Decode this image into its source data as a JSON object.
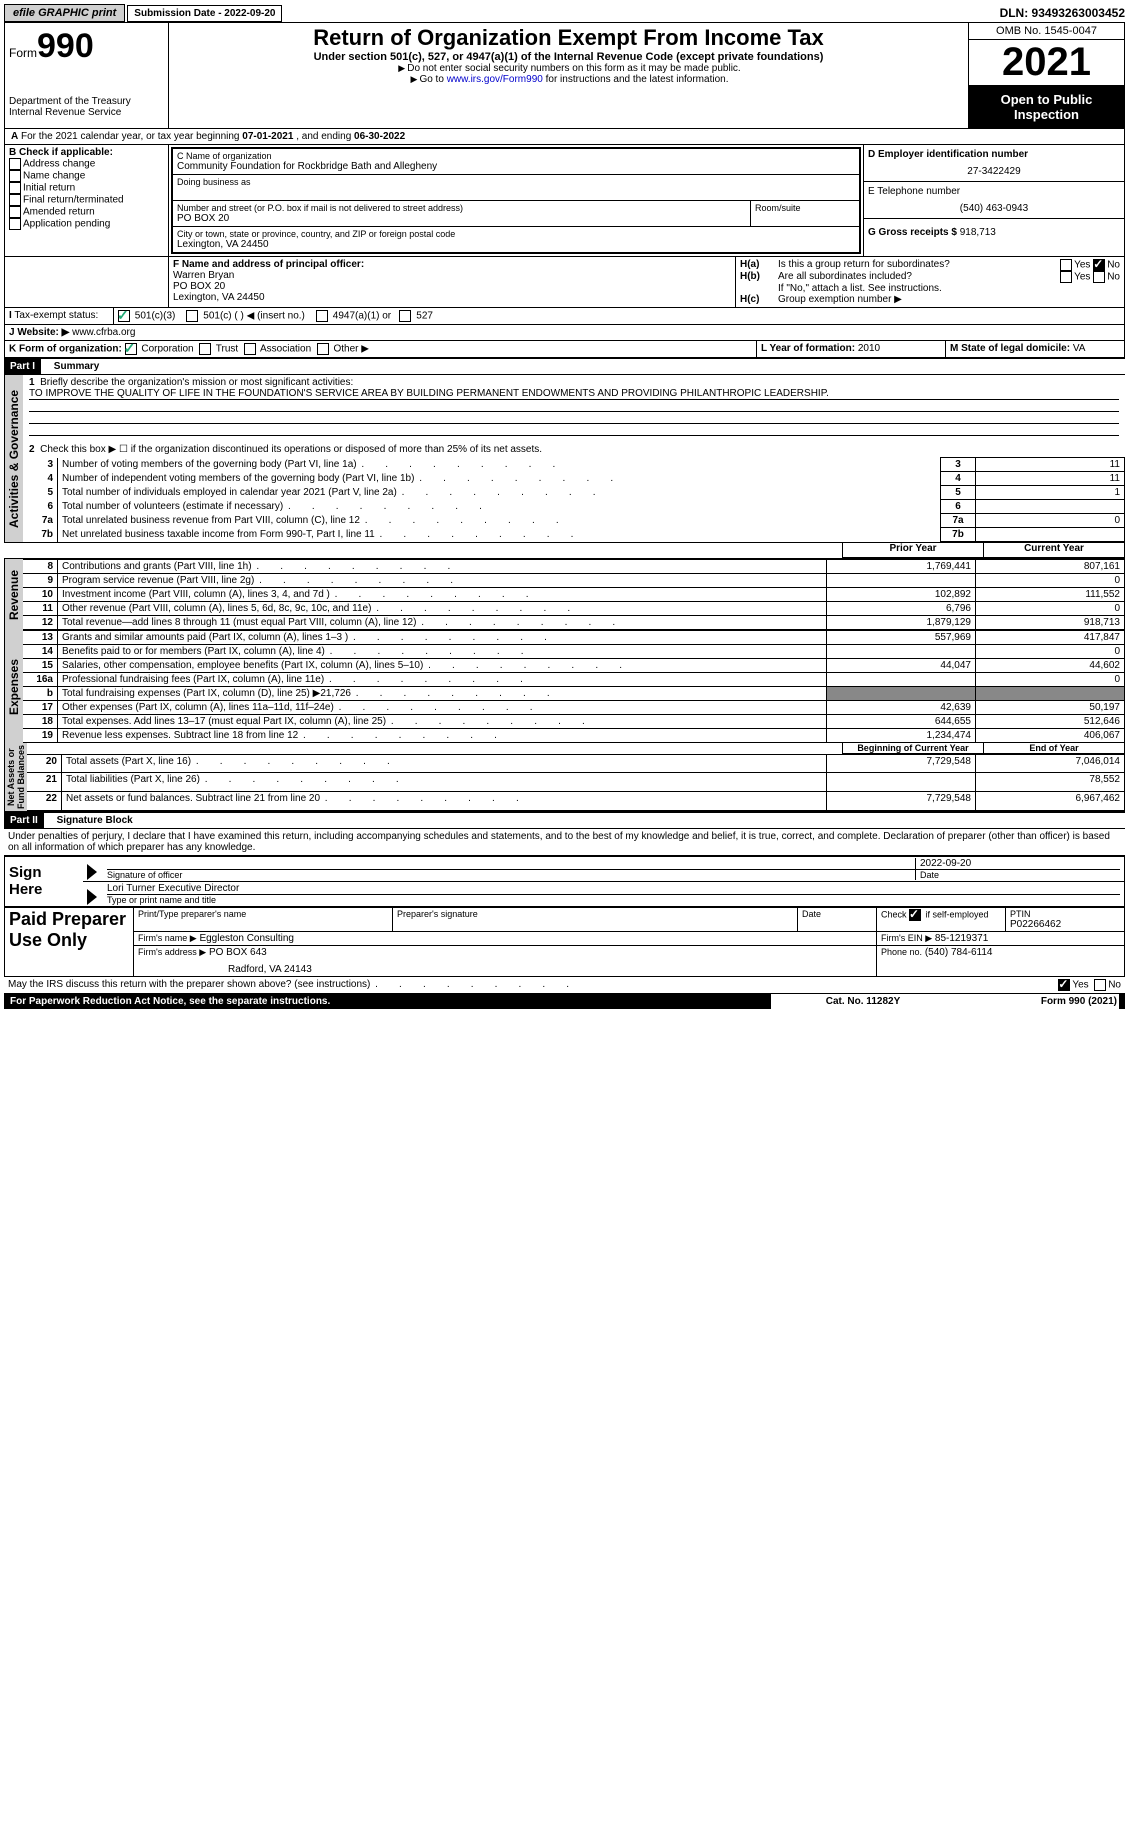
{
  "top": {
    "efile": "efile GRAPHIC print",
    "submission_label": "Submission Date - 2022-09-20",
    "dln": "DLN: 93493263003452"
  },
  "header": {
    "form_prefix": "Form",
    "form_number": "990",
    "dept": "Department of the Treasury",
    "irs": "Internal Revenue Service",
    "title": "Return of Organization Exempt From Income Tax",
    "subtitle": "Under section 501(c), 527, or 4947(a)(1) of the Internal Revenue Code (except private foundations)",
    "note1": "Do not enter social security numbers on this form as it may be made public.",
    "note2_pre": "Go to ",
    "note2_link": "www.irs.gov/Form990",
    "note2_post": " for instructions and the latest information.",
    "omb": "OMB No. 1545-0047",
    "tax_year": "2021",
    "inspection": "Open to Public Inspection"
  },
  "lineA": {
    "text_pre": "For the 2021 calendar year, or tax year beginning ",
    "begin": "07-01-2021",
    "mid": " , and ending ",
    "end": "06-30-2022"
  },
  "boxB": {
    "label": "B Check if applicable:",
    "opts": [
      "Address change",
      "Name change",
      "Initial return",
      "Final return/terminated",
      "Amended return",
      "Application pending"
    ]
  },
  "boxC": {
    "label": "C Name of organization",
    "name": "Community Foundation for Rockbridge Bath and Allegheny",
    "dba_label": "Doing business as",
    "addr_label": "Number and street (or P.O. box if mail is not delivered to street address)",
    "addr": "PO BOX 20",
    "room_label": "Room/suite",
    "city_label": "City or town, state or province, country, and ZIP or foreign postal code",
    "city": "Lexington, VA  24450"
  },
  "boxD": {
    "label": "D Employer identification number",
    "value": "27-3422429"
  },
  "boxE": {
    "label": "E Telephone number",
    "value": "(540) 463-0943"
  },
  "boxG": {
    "label": "G Gross receipts $",
    "value": "918,713"
  },
  "boxF": {
    "label": "F  Name and address of principal officer:",
    "lines": [
      "Warren Bryan",
      "PO BOX 20",
      "Lexington, VA  24450"
    ]
  },
  "boxH": {
    "a": "Is this a group return for subordinates?",
    "b": "Are all subordinates included?",
    "b_note": "If \"No,\" attach a list. See instructions.",
    "c": "Group exemption number ▶"
  },
  "boxI": {
    "label": "Tax-exempt status:",
    "opts": [
      "501(c)(3)",
      "501(c) (  ) ◀ (insert no.)",
      "4947(a)(1) or",
      "527"
    ]
  },
  "boxJ": {
    "label": "Website: ▶",
    "value": "www.cfrba.org"
  },
  "boxK": {
    "label": "K Form of organization:",
    "opts": [
      "Corporation",
      "Trust",
      "Association",
      "Other ▶"
    ]
  },
  "boxL": {
    "label": "L Year of formation:",
    "value": "2010"
  },
  "boxM": {
    "label": "M State of legal domicile:",
    "value": "VA"
  },
  "part1": {
    "hdr": "Part I",
    "title": "Summary",
    "line1_label": "Briefly describe the organization's mission or most significant activities:",
    "line1_text": "TO IMPROVE THE QUALITY OF LIFE IN THE FOUNDATION'S SERVICE AREA BY BUILDING PERMANENT ENDOWMENTS AND PROVIDING PHILANTHROPIC LEADERSHIP.",
    "line2": "Check this box ▶ ☐  if the organization discontinued its operations or disposed of more than 25% of its net assets.",
    "gov": {
      "3": {
        "t": "Number of voting members of the governing body (Part VI, line 1a)",
        "n": "3",
        "v": "11"
      },
      "4": {
        "t": "Number of independent voting members of the governing body (Part VI, line 1b)",
        "n": "4",
        "v": "11"
      },
      "5": {
        "t": "Total number of individuals employed in calendar year 2021 (Part V, line 2a)",
        "n": "5",
        "v": "1"
      },
      "6": {
        "t": "Total number of volunteers (estimate if necessary)",
        "n": "6",
        "v": ""
      },
      "7a": {
        "t": "Total unrelated business revenue from Part VIII, column (C), line 12",
        "n": "7a",
        "v": "0"
      },
      "7b": {
        "t": "Net unrelated business taxable income from Form 990-T, Part I, line 11",
        "n": "7b",
        "v": ""
      }
    },
    "cols": {
      "prior": "Prior Year",
      "current": "Current Year"
    },
    "rev": [
      {
        "n": "8",
        "t": "Contributions and grants (Part VIII, line 1h)",
        "p": "1,769,441",
        "c": "807,161"
      },
      {
        "n": "9",
        "t": "Program service revenue (Part VIII, line 2g)",
        "p": "",
        "c": "0"
      },
      {
        "n": "10",
        "t": "Investment income (Part VIII, column (A), lines 3, 4, and 7d )",
        "p": "102,892",
        "c": "111,552"
      },
      {
        "n": "11",
        "t": "Other revenue (Part VIII, column (A), lines 5, 6d, 8c, 9c, 10c, and 11e)",
        "p": "6,796",
        "c": "0"
      },
      {
        "n": "12",
        "t": "Total revenue—add lines 8 through 11 (must equal Part VIII, column (A), line 12)",
        "p": "1,879,129",
        "c": "918,713"
      }
    ],
    "exp": [
      {
        "n": "13",
        "t": "Grants and similar amounts paid (Part IX, column (A), lines 1–3 )",
        "p": "557,969",
        "c": "417,847"
      },
      {
        "n": "14",
        "t": "Benefits paid to or for members (Part IX, column (A), line 4)",
        "p": "",
        "c": "0"
      },
      {
        "n": "15",
        "t": "Salaries, other compensation, employee benefits (Part IX, column (A), lines 5–10)",
        "p": "44,047",
        "c": "44,602"
      },
      {
        "n": "16a",
        "t": "Professional fundraising fees (Part IX, column (A), line 11e)",
        "p": "",
        "c": "0"
      },
      {
        "n": "b",
        "t": "Total fundraising expenses (Part IX, column (D), line 25) ▶21,726",
        "p": "SHADE",
        "c": "SHADE"
      },
      {
        "n": "17",
        "t": "Other expenses (Part IX, column (A), lines 11a–11d, 11f–24e)",
        "p": "42,639",
        "c": "50,197"
      },
      {
        "n": "18",
        "t": "Total expenses. Add lines 13–17 (must equal Part IX, column (A), line 25)",
        "p": "644,655",
        "c": "512,646"
      },
      {
        "n": "19",
        "t": "Revenue less expenses. Subtract line 18 from line 12",
        "p": "1,234,474",
        "c": "406,067"
      }
    ],
    "net_cols": {
      "begin": "Beginning of Current Year",
      "end": "End of Year"
    },
    "net": [
      {
        "n": "20",
        "t": "Total assets (Part X, line 16)",
        "p": "7,729,548",
        "c": "7,046,014"
      },
      {
        "n": "21",
        "t": "Total liabilities (Part X, line 26)",
        "p": "",
        "c": "78,552"
      },
      {
        "n": "22",
        "t": "Net assets or fund balances. Subtract line 21 from line 20",
        "p": "7,729,548",
        "c": "6,967,462"
      }
    ]
  },
  "part2": {
    "hdr": "Part II",
    "title": "Signature Block",
    "decl": "Under penalties of perjury, I declare that I have examined this return, including accompanying schedules and statements, and to the best of my knowledge and belief, it is true, correct, and complete. Declaration of preparer (other than officer) is based on all information of which preparer has any knowledge.",
    "sign_here": "Sign Here",
    "sig_officer": "Signature of officer",
    "sig_date": "2022-09-20",
    "date_label": "Date",
    "name_title": "Lori Turner  Executive Director",
    "name_title_label": "Type or print name and title",
    "paid": "Paid Preparer Use Only",
    "prep_name_label": "Print/Type preparer's name",
    "prep_sig_label": "Preparer's signature",
    "check_self": "Check ☑ if self-employed",
    "ptin_label": "PTIN",
    "ptin": "P02266462",
    "firm_name_label": "Firm's name   ▶",
    "firm_name": "Eggleston Consulting",
    "firm_ein_label": "Firm's EIN ▶",
    "firm_ein": "85-1219371",
    "firm_addr_label": "Firm's address ▶",
    "firm_addr1": "PO BOX 643",
    "firm_addr2": "Radford, VA  24143",
    "phone_label": "Phone no.",
    "phone": "(540) 784-6114",
    "discuss": "May the IRS discuss this return with the preparer shown above? (see instructions)"
  },
  "footer": {
    "left": "For Paperwork Reduction Act Notice, see the separate instructions.",
    "mid": "Cat. No. 11282Y",
    "right": "Form 990 (2021)"
  }
}
